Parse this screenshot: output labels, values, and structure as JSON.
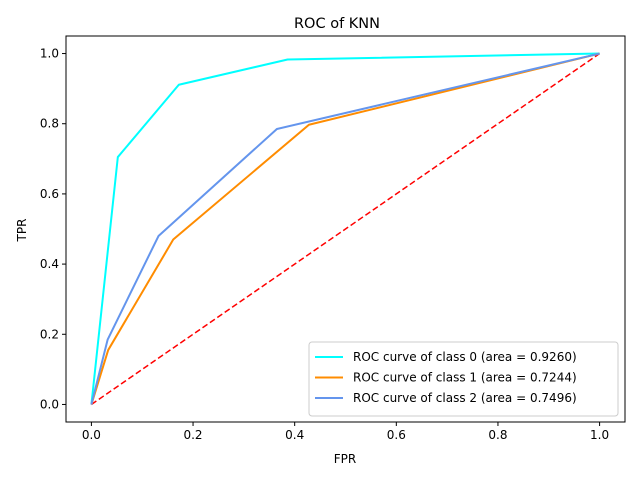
{
  "chart_data": {
    "type": "line",
    "title": "ROC of KNN",
    "xlabel": "FPR",
    "ylabel": "TPR",
    "xlim": [
      -0.05,
      1.05
    ],
    "ylim": [
      -0.05,
      1.05
    ],
    "xticks": [
      "0.0",
      "0.2",
      "0.4",
      "0.6",
      "0.8",
      "1.0"
    ],
    "yticks": [
      "0.0",
      "0.2",
      "0.4",
      "0.6",
      "0.8",
      "1.0"
    ],
    "grid": false,
    "legend_position": "lower-right",
    "series": [
      {
        "name": "ROC curve of class 0 (area = 0.9260)",
        "color": "#00ffff",
        "x": [
          0.0,
          0.052,
          0.172,
          0.386,
          1.0
        ],
        "y": [
          0.0,
          0.705,
          0.911,
          0.983,
          1.0
        ]
      },
      {
        "name": "ROC curve of class 1 (area = 0.7244)",
        "color": "#ff8c00",
        "x": [
          0.0,
          0.033,
          0.161,
          0.428,
          1.0
        ],
        "y": [
          0.0,
          0.155,
          0.47,
          0.797,
          1.0
        ]
      },
      {
        "name": "ROC curve of class 2 (area = 0.7496)",
        "color": "#6495ed",
        "x": [
          0.0,
          0.032,
          0.132,
          0.365,
          1.0
        ],
        "y": [
          0.0,
          0.185,
          0.48,
          0.785,
          1.0
        ]
      }
    ],
    "reference_line": {
      "x": [
        0.0,
        1.0
      ],
      "y": [
        0.0,
        1.0
      ],
      "color": "#ff0000",
      "style": "dashed"
    }
  }
}
